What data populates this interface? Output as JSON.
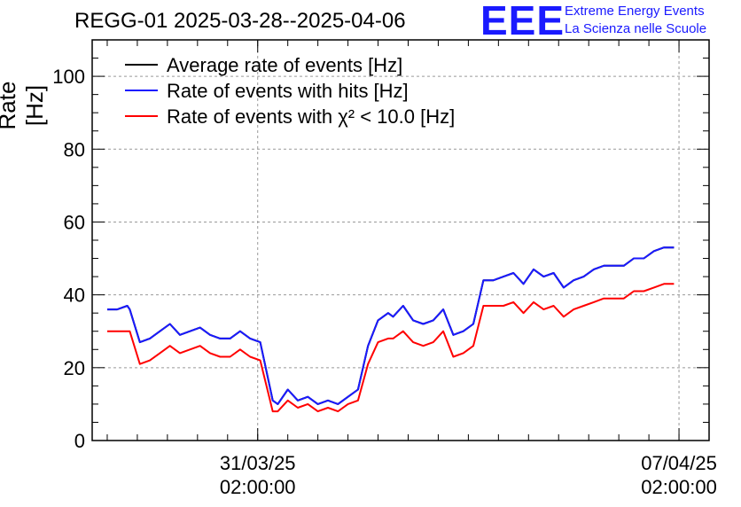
{
  "header": {
    "title": "REGG-01 2025-03-28--2025-04-06",
    "logo_mark": "EEE",
    "logo_line1": "Extreme Energy Events",
    "logo_line2": "La Scienza nelle Scuole"
  },
  "chart_data": {
    "type": "line",
    "title": "REGG-01 2025-03-28--2025-04-06",
    "xlabel": "",
    "ylabel": "Rate [Hz]",
    "ylim": [
      0,
      110
    ],
    "yticks": [
      0,
      20,
      40,
      60,
      80,
      100
    ],
    "xlim": [
      "2025-03-28 08:00:00",
      "2025-04-07 14:00:00"
    ],
    "xticks": [
      {
        "x": "2025-03-31 02:00:00",
        "line1": "31/03/25",
        "line2": "02:00:00"
      },
      {
        "x": "2025-04-07 02:00:00",
        "line1": "07/04/25",
        "line2": "02:00:00"
      }
    ],
    "grid": true,
    "legend_position": "top-left",
    "colors": {
      "average": "#000000",
      "hits": "#1a1aff",
      "chi2": "#ff0000"
    },
    "series": [
      {
        "name": "Average rate of events [Hz]",
        "color": "#000000",
        "x": [
          "2025-03-28 14:00:00",
          "2025-03-28 18:00:00",
          "2025-03-28 22:00:00",
          "2025-03-28 23:00:00",
          "2025-03-29 03:00:00",
          "2025-03-29 07:00:00",
          "2025-03-29 11:00:00",
          "2025-03-29 15:00:00",
          "2025-03-29 19:00:00",
          "2025-03-29 23:00:00",
          "2025-03-30 03:00:00",
          "2025-03-30 07:00:00",
          "2025-03-30 11:00:00",
          "2025-03-30 15:00:00",
          "2025-03-30 19:00:00",
          "2025-03-30 23:00:00",
          "2025-03-31 03:00:00",
          "2025-03-31 08:00:00",
          "2025-03-31 10:00:00",
          "2025-03-31 14:00:00",
          "2025-03-31 18:00:00",
          "2025-03-31 22:00:00",
          "2025-04-01 02:00:00",
          "2025-04-01 06:00:00",
          "2025-04-01 10:00:00",
          "2025-04-01 14:00:00",
          "2025-04-01 18:00:00",
          "2025-04-01 22:00:00",
          "2025-04-02 02:00:00",
          "2025-04-02 06:00:00",
          "2025-04-02 08:00:00",
          "2025-04-02 12:00:00",
          "2025-04-02 16:00:00",
          "2025-04-02 20:00:00",
          "2025-04-03 00:00:00",
          "2025-04-03 04:00:00",
          "2025-04-03 08:00:00",
          "2025-04-03 12:00:00",
          "2025-04-03 16:00:00",
          "2025-04-03 20:00:00",
          "2025-04-04 00:00:00",
          "2025-04-04 04:00:00",
          "2025-04-04 08:00:00",
          "2025-04-04 12:00:00",
          "2025-04-04 16:00:00",
          "2025-04-04 20:00:00",
          "2025-04-05 00:00:00",
          "2025-04-05 04:00:00",
          "2025-04-05 08:00:00",
          "2025-04-05 12:00:00",
          "2025-04-05 16:00:00",
          "2025-04-05 20:00:00",
          "2025-04-06 00:00:00",
          "2025-04-06 04:00:00",
          "2025-04-06 08:00:00",
          "2025-04-06 12:00:00",
          "2025-04-06 16:00:00",
          "2025-04-06 20:00:00",
          "2025-04-07 00:00:00"
        ],
        "values": [
          36,
          36,
          37,
          36,
          27,
          28,
          30,
          32,
          29,
          30,
          31,
          29,
          28,
          28,
          30,
          28,
          27,
          11,
          10,
          14,
          11,
          12,
          10,
          11,
          10,
          12,
          14,
          26,
          33,
          35,
          34,
          37,
          33,
          32,
          33,
          36,
          29,
          30,
          32,
          44,
          44,
          45,
          46,
          43,
          47,
          45,
          46,
          42,
          44,
          45,
          47,
          48,
          48,
          48,
          50,
          50,
          52,
          53,
          53
        ]
      },
      {
        "name": "Rate of events with hits [Hz]",
        "color": "#1a1aff",
        "x": [
          "2025-03-28 14:00:00",
          "2025-03-28 18:00:00",
          "2025-03-28 22:00:00",
          "2025-03-28 23:00:00",
          "2025-03-29 03:00:00",
          "2025-03-29 07:00:00",
          "2025-03-29 11:00:00",
          "2025-03-29 15:00:00",
          "2025-03-29 19:00:00",
          "2025-03-29 23:00:00",
          "2025-03-30 03:00:00",
          "2025-03-30 07:00:00",
          "2025-03-30 11:00:00",
          "2025-03-30 15:00:00",
          "2025-03-30 19:00:00",
          "2025-03-30 23:00:00",
          "2025-03-31 03:00:00",
          "2025-03-31 08:00:00",
          "2025-03-31 10:00:00",
          "2025-03-31 14:00:00",
          "2025-03-31 18:00:00",
          "2025-03-31 22:00:00",
          "2025-04-01 02:00:00",
          "2025-04-01 06:00:00",
          "2025-04-01 10:00:00",
          "2025-04-01 14:00:00",
          "2025-04-01 18:00:00",
          "2025-04-01 22:00:00",
          "2025-04-02 02:00:00",
          "2025-04-02 06:00:00",
          "2025-04-02 08:00:00",
          "2025-04-02 12:00:00",
          "2025-04-02 16:00:00",
          "2025-04-02 20:00:00",
          "2025-04-03 00:00:00",
          "2025-04-03 04:00:00",
          "2025-04-03 08:00:00",
          "2025-04-03 12:00:00",
          "2025-04-03 16:00:00",
          "2025-04-03 20:00:00",
          "2025-04-04 00:00:00",
          "2025-04-04 04:00:00",
          "2025-04-04 08:00:00",
          "2025-04-04 12:00:00",
          "2025-04-04 16:00:00",
          "2025-04-04 20:00:00",
          "2025-04-05 00:00:00",
          "2025-04-05 04:00:00",
          "2025-04-05 08:00:00",
          "2025-04-05 12:00:00",
          "2025-04-05 16:00:00",
          "2025-04-05 20:00:00",
          "2025-04-06 00:00:00",
          "2025-04-06 04:00:00",
          "2025-04-06 08:00:00",
          "2025-04-06 12:00:00",
          "2025-04-06 16:00:00",
          "2025-04-06 20:00:00",
          "2025-04-07 00:00:00"
        ],
        "values": [
          36,
          36,
          37,
          36,
          27,
          28,
          30,
          32,
          29,
          30,
          31,
          29,
          28,
          28,
          30,
          28,
          27,
          11,
          10,
          14,
          11,
          12,
          10,
          11,
          10,
          12,
          14,
          26,
          33,
          35,
          34,
          37,
          33,
          32,
          33,
          36,
          29,
          30,
          32,
          44,
          44,
          45,
          46,
          43,
          47,
          45,
          46,
          42,
          44,
          45,
          47,
          48,
          48,
          48,
          50,
          50,
          52,
          53,
          53
        ]
      },
      {
        "name": "Rate of events with χ² < 10.0 [Hz]",
        "color": "#ff0000",
        "x": [
          "2025-03-28 14:00:00",
          "2025-03-28 18:00:00",
          "2025-03-28 22:00:00",
          "2025-03-28 23:00:00",
          "2025-03-29 03:00:00",
          "2025-03-29 07:00:00",
          "2025-03-29 11:00:00",
          "2025-03-29 15:00:00",
          "2025-03-29 19:00:00",
          "2025-03-29 23:00:00",
          "2025-03-30 03:00:00",
          "2025-03-30 07:00:00",
          "2025-03-30 11:00:00",
          "2025-03-30 15:00:00",
          "2025-03-30 19:00:00",
          "2025-03-30 23:00:00",
          "2025-03-31 03:00:00",
          "2025-03-31 08:00:00",
          "2025-03-31 10:00:00",
          "2025-03-31 14:00:00",
          "2025-03-31 18:00:00",
          "2025-03-31 22:00:00",
          "2025-04-01 02:00:00",
          "2025-04-01 06:00:00",
          "2025-04-01 10:00:00",
          "2025-04-01 14:00:00",
          "2025-04-01 18:00:00",
          "2025-04-01 22:00:00",
          "2025-04-02 02:00:00",
          "2025-04-02 06:00:00",
          "2025-04-02 08:00:00",
          "2025-04-02 12:00:00",
          "2025-04-02 16:00:00",
          "2025-04-02 20:00:00",
          "2025-04-03 00:00:00",
          "2025-04-03 04:00:00",
          "2025-04-03 08:00:00",
          "2025-04-03 12:00:00",
          "2025-04-03 16:00:00",
          "2025-04-03 20:00:00",
          "2025-04-04 00:00:00",
          "2025-04-04 04:00:00",
          "2025-04-04 08:00:00",
          "2025-04-04 12:00:00",
          "2025-04-04 16:00:00",
          "2025-04-04 20:00:00",
          "2025-04-05 00:00:00",
          "2025-04-05 04:00:00",
          "2025-04-05 08:00:00",
          "2025-04-05 12:00:00",
          "2025-04-05 16:00:00",
          "2025-04-05 20:00:00",
          "2025-04-06 00:00:00",
          "2025-04-06 04:00:00",
          "2025-04-06 08:00:00",
          "2025-04-06 12:00:00",
          "2025-04-06 16:00:00",
          "2025-04-06 20:00:00",
          "2025-04-07 00:00:00"
        ],
        "values": [
          30,
          30,
          30,
          30,
          21,
          22,
          24,
          26,
          24,
          25,
          26,
          24,
          23,
          23,
          25,
          23,
          22,
          8,
          8,
          11,
          9,
          10,
          8,
          9,
          8,
          10,
          11,
          21,
          27,
          28,
          28,
          30,
          27,
          26,
          27,
          30,
          23,
          24,
          26,
          37,
          37,
          37,
          38,
          35,
          38,
          36,
          37,
          34,
          36,
          37,
          38,
          39,
          39,
          39,
          41,
          41,
          42,
          43,
          43
        ]
      }
    ]
  }
}
